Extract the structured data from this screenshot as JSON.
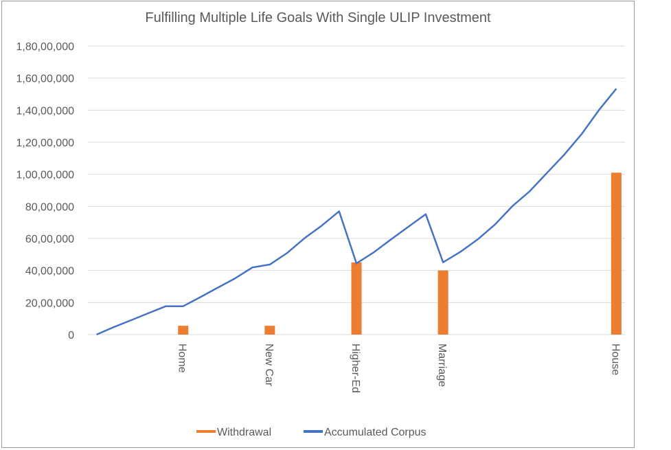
{
  "chart_data": {
    "type": "bar+line",
    "title": "Fulfilling Multiple Life Goals With Single ULIP Investment",
    "xlabel": "",
    "ylabel": "",
    "ylim": [
      0,
      18000000
    ],
    "yticks": [
      0,
      2000000,
      4000000,
      6000000,
      8000000,
      10000000,
      12000000,
      14000000,
      16000000,
      18000000
    ],
    "ytick_labels": [
      "0",
      "20,00,000",
      "40,00,000",
      "60,00,000",
      "80,00,000",
      "1,00,00,000",
      "1,20,00,000",
      "1,40,00,000",
      "1,60,00,000",
      "1,80,00,000"
    ],
    "grid": true,
    "legend_position": "bottom",
    "categories": [
      "",
      "",
      "",
      "",
      "",
      "Home",
      "",
      "",
      "",
      "",
      "New Car",
      "",
      "",
      "",
      "",
      "Higher-Ed",
      "",
      "",
      "",
      "",
      "Marriage",
      "",
      "",
      "",
      "",
      "",
      "",
      "",
      "",
      "",
      "House"
    ],
    "series": [
      {
        "name": "Withdrawal",
        "type": "bar",
        "color": "#ED7D31",
        "values": [
          null,
          null,
          null,
          null,
          null,
          550000,
          null,
          null,
          null,
          null,
          550000,
          null,
          null,
          null,
          null,
          4500000,
          null,
          null,
          null,
          null,
          4000000,
          null,
          null,
          null,
          null,
          null,
          null,
          null,
          null,
          null,
          10100000
        ]
      },
      {
        "name": "Accumulated Corpus",
        "type": "line",
        "color": "#4472C4",
        "values": [
          0,
          470000,
          900000,
          1340000,
          1770000,
          1770000,
          2340000,
          2930000,
          3510000,
          4190000,
          4370000,
          5090000,
          6010000,
          6800000,
          7690000,
          4440000,
          5130000,
          5940000,
          6730000,
          7510000,
          4510000,
          5160000,
          5940000,
          6870000,
          8010000,
          8940000,
          10090000,
          11230000,
          12510000,
          14010000,
          15340000
        ]
      }
    ]
  }
}
